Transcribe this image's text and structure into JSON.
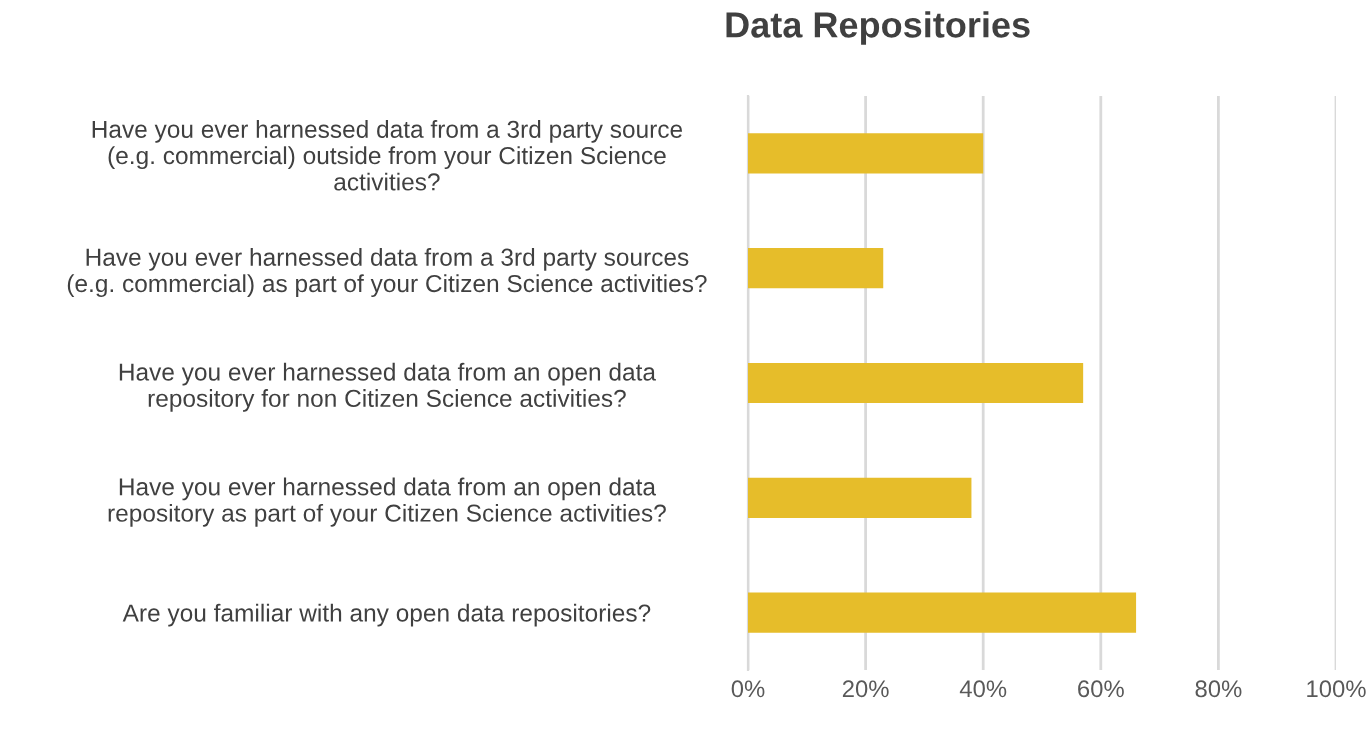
{
  "chart_data": {
    "type": "bar",
    "orientation": "horizontal",
    "title": "Data Repositories",
    "categories": [
      "Have you ever harnessed data from a 3rd party source\n(e.g. commercial) outside from your Citizen Science\nactivities?",
      "Have you ever harnessed data from a 3rd party sources\n(e.g. commercial) as part of your Citizen Science activities?",
      "Have you ever harnessed data from an open data\nrepository for non Citizen Science activities?",
      "Have you ever harnessed data from an open data\nrepository as part of your Citizen Science activities?",
      "Are you familiar with any open data repositories?"
    ],
    "values": [
      40,
      23,
      57,
      38,
      66
    ],
    "color": "#e6bd2a",
    "xlim": [
      0,
      100
    ],
    "xticks": [
      {
        "value": 0,
        "label": "0%"
      },
      {
        "value": 20,
        "label": "20%"
      },
      {
        "value": 40,
        "label": "40%"
      },
      {
        "value": 60,
        "label": "60%"
      },
      {
        "value": 80,
        "label": "80%"
      },
      {
        "value": 100,
        "label": "100%"
      }
    ],
    "grid": "x",
    "legend": false
  }
}
